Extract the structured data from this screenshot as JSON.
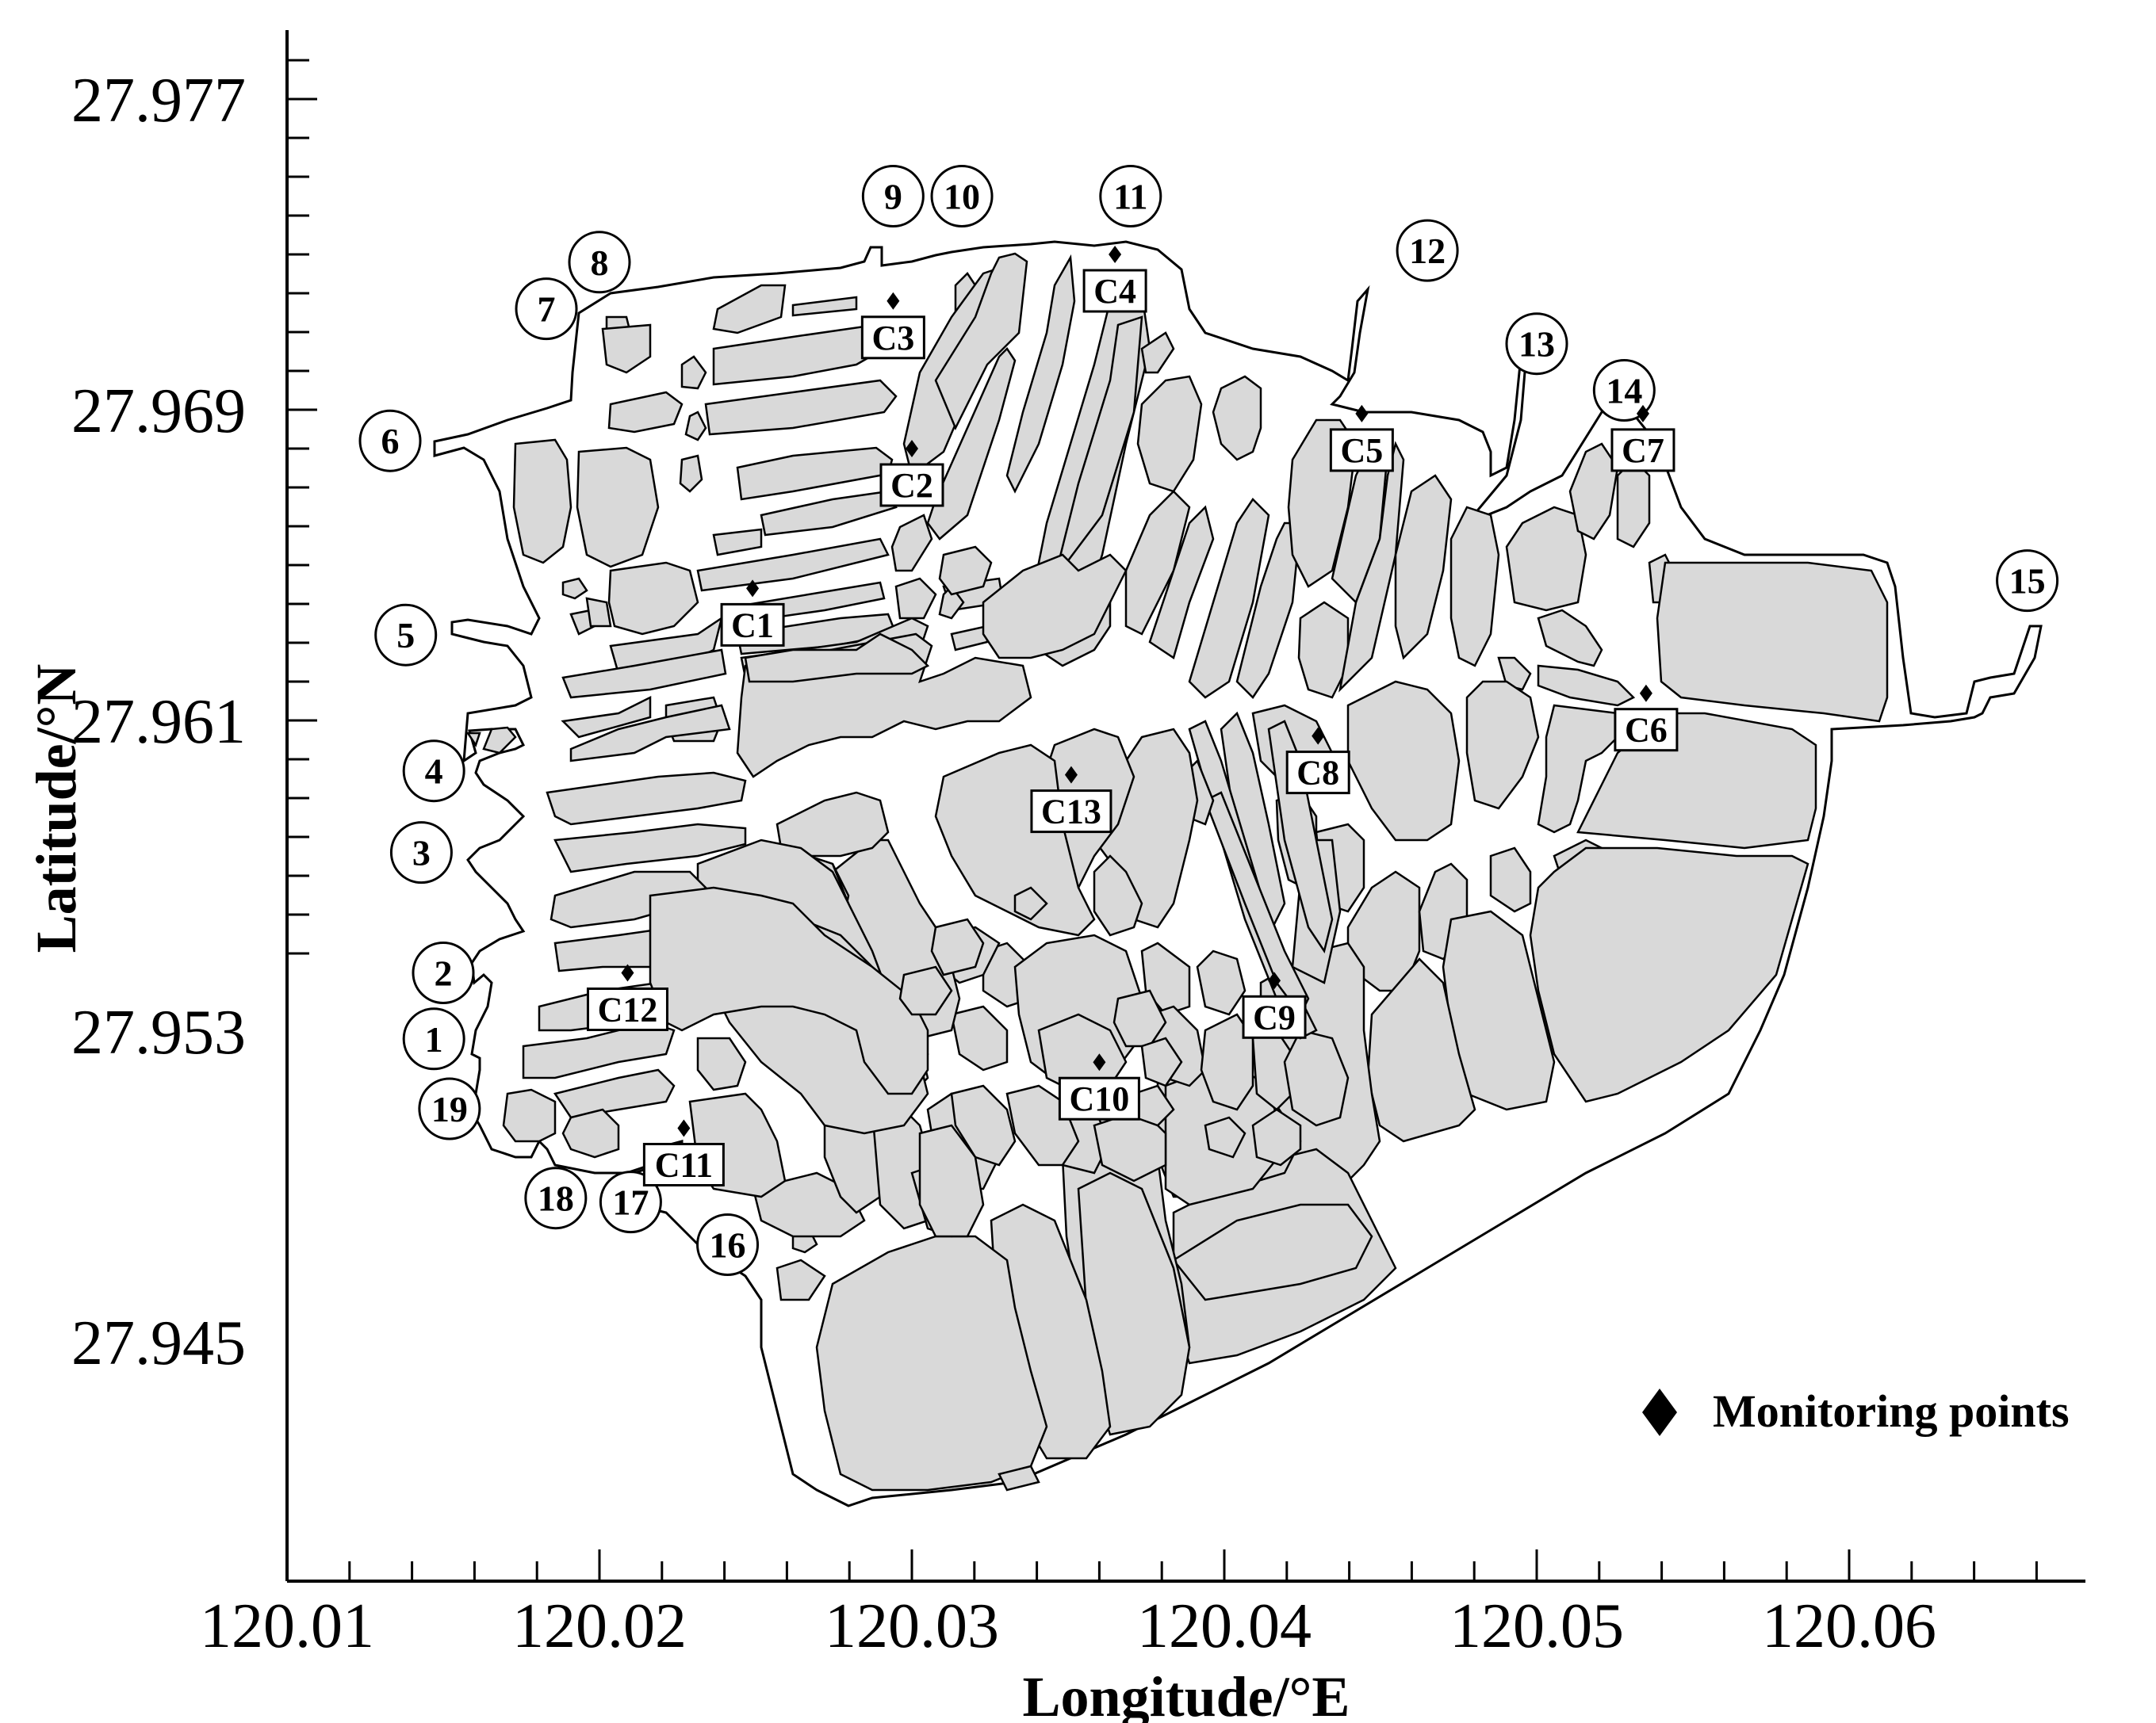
{
  "axes": {
    "x_title": "Longitude/°E",
    "y_title": "Latitude/°N",
    "x_ticks": [
      "120.01",
      "120.02",
      "120.03",
      "120.04",
      "120.05",
      "120.06"
    ],
    "y_ticks": [
      "27.977",
      "27.969",
      "27.961",
      "27.953",
      "27.945"
    ]
  },
  "legend": {
    "label": "Monitoring points",
    "marker": "filled-diamond"
  },
  "colors": {
    "cells": "#d9d9d9",
    "lines": "#000000",
    "background": "#ffffff"
  },
  "boundary_openings": [
    {
      "label": "1",
      "lon": 120.0147,
      "lat": 27.9528
    },
    {
      "label": "2",
      "lon": 120.015,
      "lat": 27.9545
    },
    {
      "label": "3",
      "lon": 120.0143,
      "lat": 27.9576
    },
    {
      "label": "4",
      "lon": 120.0147,
      "lat": 27.9597
    },
    {
      "label": "5",
      "lon": 120.0138,
      "lat": 27.9632
    },
    {
      "label": "6",
      "lon": 120.0133,
      "lat": 27.9682
    },
    {
      "label": "7",
      "lon": 120.0183,
      "lat": 27.9716
    },
    {
      "label": "8",
      "lon": 120.02,
      "lat": 27.9728
    },
    {
      "label": "9",
      "lon": 120.0294,
      "lat": 27.9745
    },
    {
      "label": "10",
      "lon": 120.0316,
      "lat": 27.9745
    },
    {
      "label": "11",
      "lon": 120.037,
      "lat": 27.9745
    },
    {
      "label": "12",
      "lon": 120.0465,
      "lat": 27.9731
    },
    {
      "label": "13",
      "lon": 120.05,
      "lat": 27.9707
    },
    {
      "label": "14",
      "lon": 120.0528,
      "lat": 27.9695
    },
    {
      "label": "15",
      "lon": 120.0657,
      "lat": 27.9646
    },
    {
      "label": "16",
      "lon": 120.0241,
      "lat": 27.9475
    },
    {
      "label": "17",
      "lon": 120.021,
      "lat": 27.9486
    },
    {
      "label": "18",
      "lon": 120.0186,
      "lat": 27.9487
    },
    {
      "label": "19",
      "lon": 120.0152,
      "lat": 27.951
    }
  ],
  "monitoring_points": [
    {
      "label": "C1",
      "lon": 120.0249,
      "lat": 27.9644
    },
    {
      "label": "C2",
      "lon": 120.03,
      "lat": 27.968
    },
    {
      "label": "C3",
      "lon": 120.0294,
      "lat": 27.9718
    },
    {
      "label": "C4",
      "lon": 120.0365,
      "lat": 27.973
    },
    {
      "label": "C5",
      "lon": 120.0444,
      "lat": 27.9689
    },
    {
      "label": "C6",
      "lon": 120.0535,
      "lat": 27.9617
    },
    {
      "label": "C7",
      "lon": 120.0534,
      "lat": 27.9689
    },
    {
      "label": "C8",
      "lon": 120.043,
      "lat": 27.9606
    },
    {
      "label": "C9",
      "lon": 120.0416,
      "lat": 27.9543
    },
    {
      "label": "C10",
      "lon": 120.036,
      "lat": 27.9522
    },
    {
      "label": "C11",
      "lon": 120.0227,
      "lat": 27.9505
    },
    {
      "label": "C12",
      "lon": 120.0209,
      "lat": 27.9545
    },
    {
      "label": "C13",
      "lon": 120.0351,
      "lat": 27.9596
    }
  ]
}
